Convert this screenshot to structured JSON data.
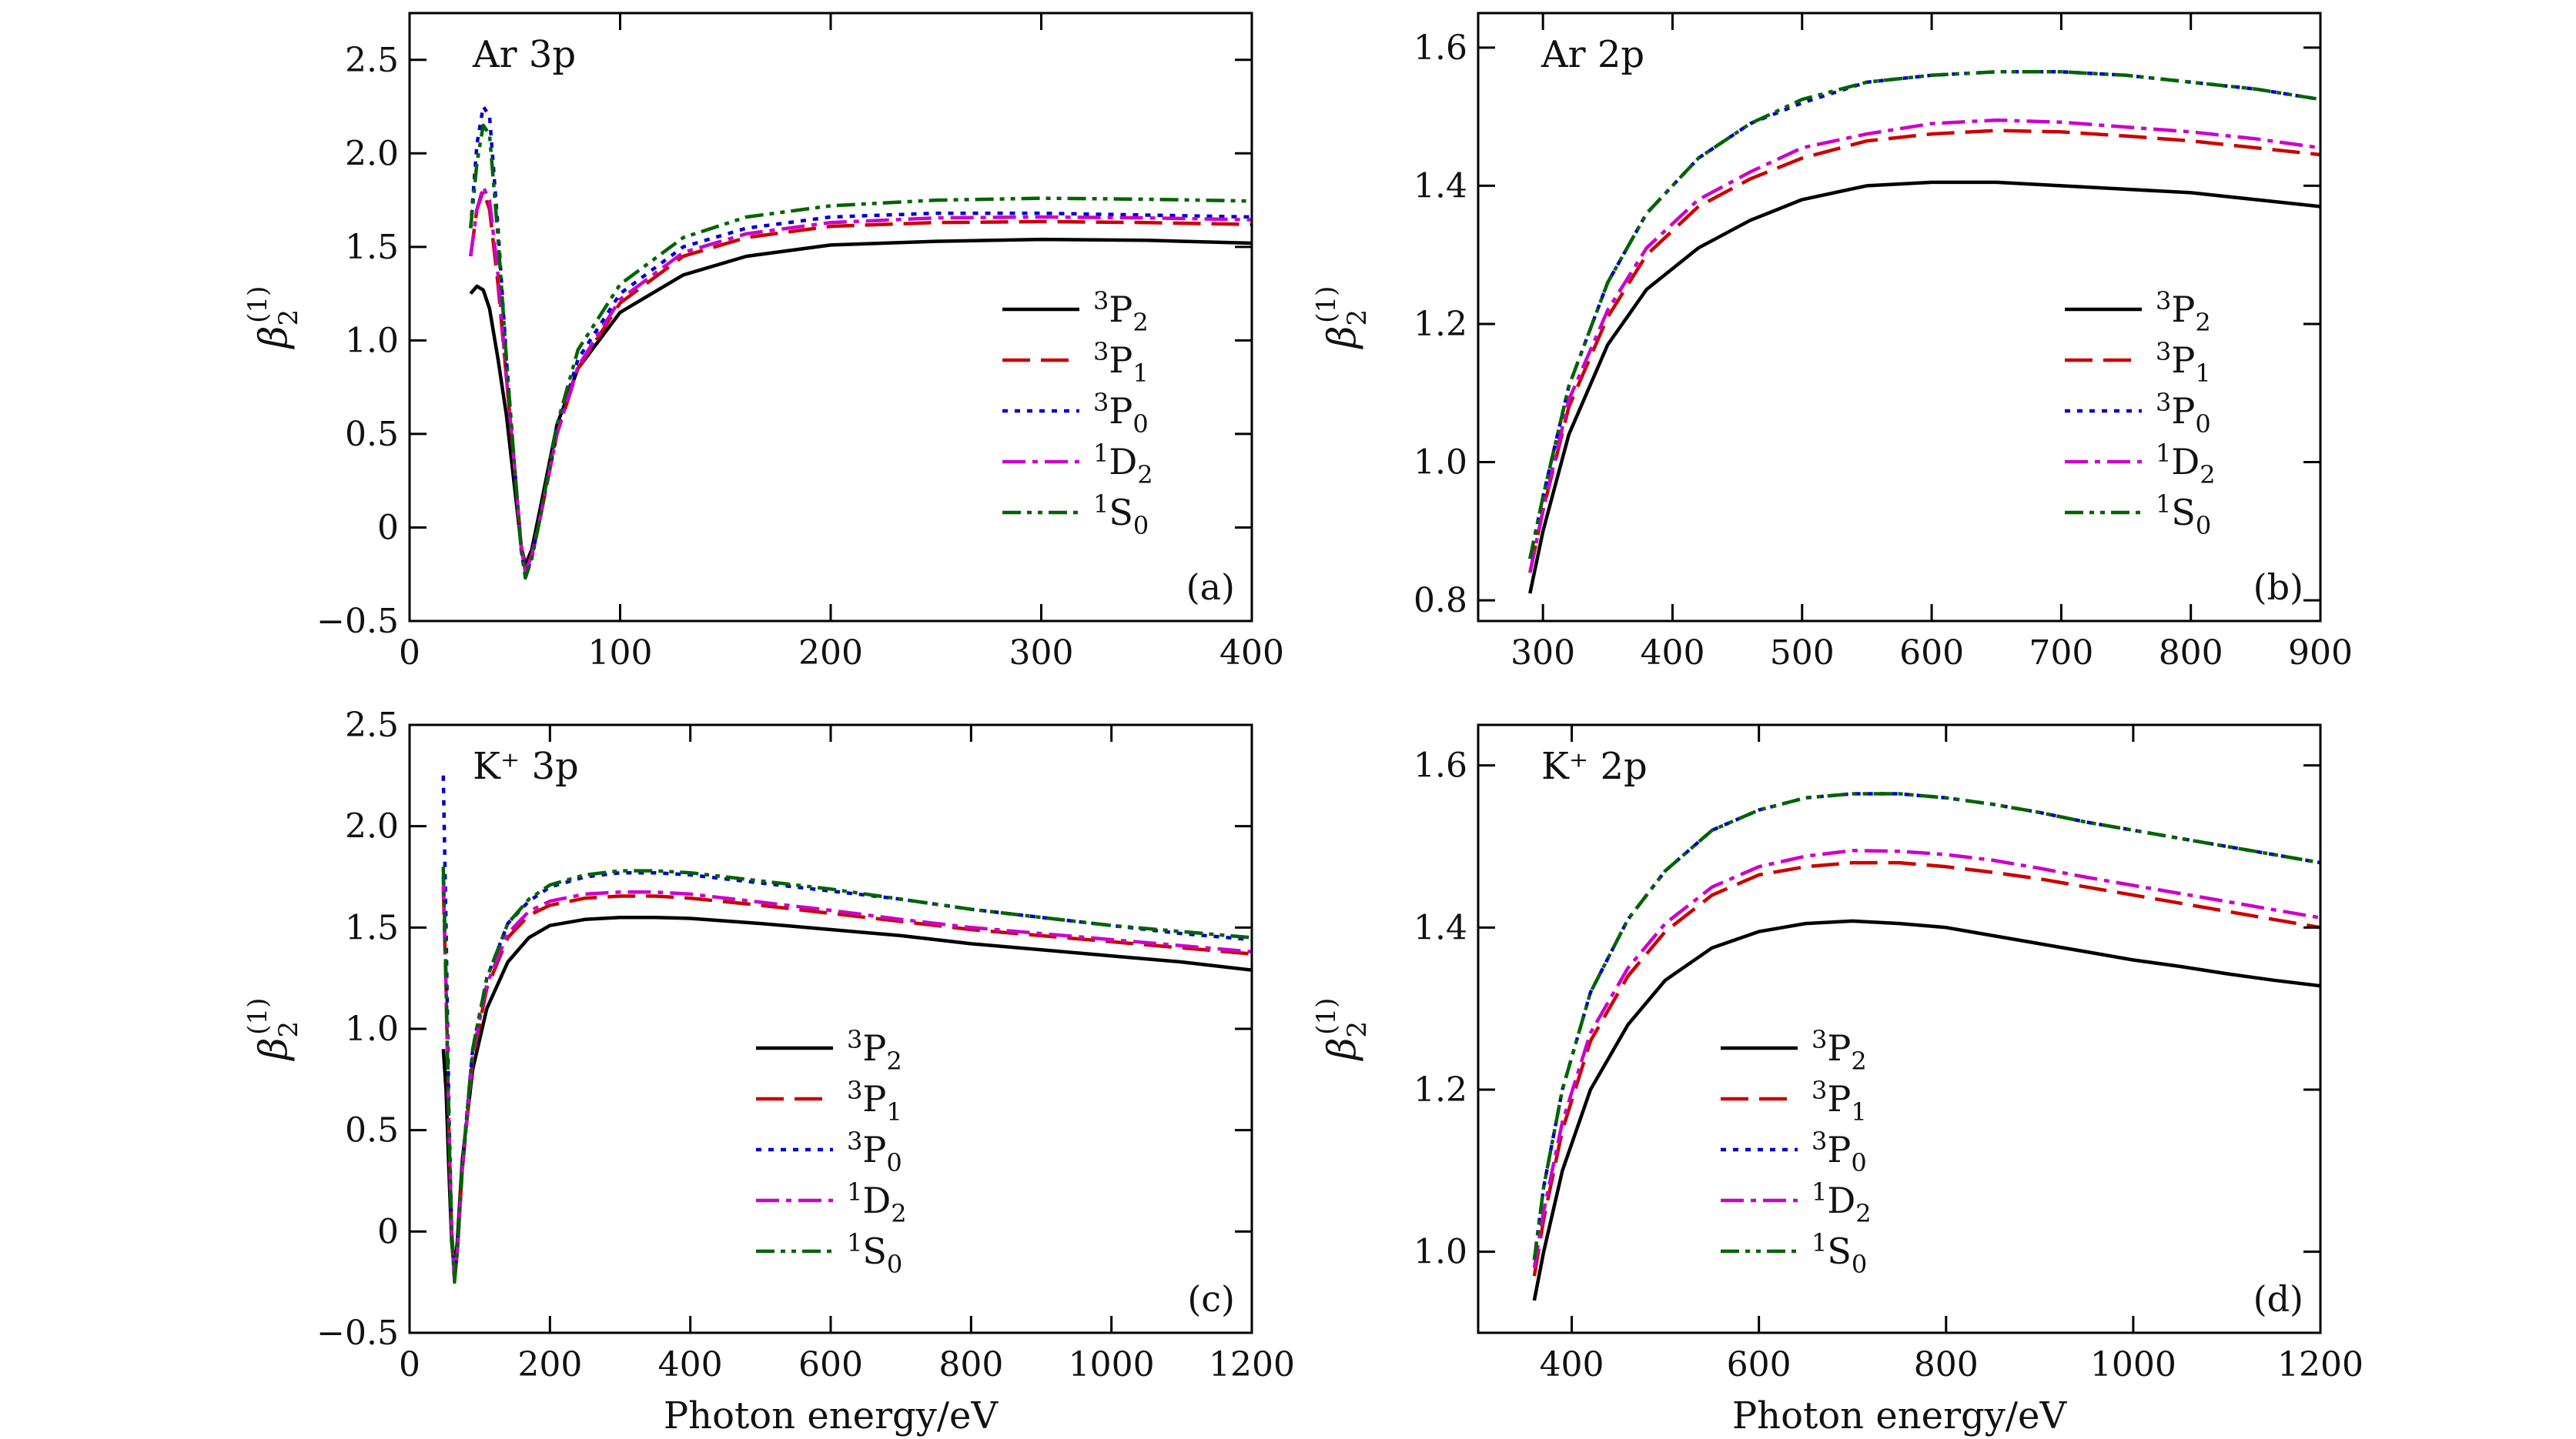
{
  "figure": {
    "xlabel": "Photon energy/eV",
    "ylabel_symbol": "β",
    "ylabel_sub": "2",
    "ylabel_sup": "(1)"
  },
  "legend": [
    {
      "key": "3P2",
      "sup": "3",
      "base": "P",
      "sub": "2",
      "color": "#000000",
      "dash": "solid"
    },
    {
      "key": "3P1",
      "sup": "3",
      "base": "P",
      "sub": "1",
      "color": "#cc0000",
      "dash": "dashed"
    },
    {
      "key": "3P0",
      "sup": "3",
      "base": "P",
      "sub": "0",
      "color": "#0000cc",
      "dash": "dotted"
    },
    {
      "key": "1D2",
      "sup": "1",
      "base": "D",
      "sub": "2",
      "color": "#cc00cc",
      "dash": "dashdot"
    },
    {
      "key": "1S0",
      "sup": "1",
      "base": "S",
      "sub": "0",
      "color": "#006400",
      "dash": "dashdotdot"
    }
  ],
  "chart_data": [
    {
      "panel": "(a)",
      "title": "Ar 3p",
      "type": "line",
      "xlim": [
        0,
        400
      ],
      "ylim": [
        -0.5,
        2.75
      ],
      "xticks": [
        "0",
        "100",
        "200",
        "300",
        "400"
      ],
      "xtick_values": [
        0,
        100,
        200,
        300,
        400
      ],
      "yticks": [
        "−0.5",
        "0",
        "0.5",
        "1.0",
        "1.5",
        "2.0",
        "2.5"
      ],
      "ytick_values": [
        -0.5,
        0,
        0.5,
        1.0,
        1.5,
        2.0,
        2.5
      ],
      "series": [
        {
          "name": "3P2",
          "x": [
            29,
            32,
            35,
            38,
            42,
            46,
            50,
            53,
            55,
            58,
            62,
            70,
            80,
            100,
            130,
            160,
            200,
            250,
            300,
            350,
            400
          ],
          "y": [
            1.25,
            1.29,
            1.27,
            1.17,
            0.9,
            0.6,
            0.2,
            -0.1,
            -0.2,
            -0.12,
            0.1,
            0.55,
            0.85,
            1.15,
            1.35,
            1.45,
            1.51,
            1.53,
            1.54,
            1.535,
            1.52
          ]
        },
        {
          "name": "3P1",
          "x": [
            29,
            32,
            35,
            38,
            42,
            46,
            50,
            53,
            55,
            58,
            62,
            70,
            80,
            100,
            130,
            160,
            200,
            250,
            300,
            350,
            400
          ],
          "y": [
            1.45,
            1.7,
            1.8,
            1.7,
            1.3,
            0.8,
            0.3,
            -0.1,
            -0.23,
            -0.15,
            0.05,
            0.5,
            0.85,
            1.2,
            1.45,
            1.55,
            1.61,
            1.63,
            1.635,
            1.63,
            1.62
          ]
        },
        {
          "name": "3P0",
          "x": [
            29,
            32,
            35,
            38,
            42,
            46,
            50,
            53,
            55,
            58,
            62,
            70,
            80,
            100,
            130,
            160,
            200,
            250,
            300,
            350,
            400
          ],
          "y": [
            1.6,
            2.05,
            2.25,
            2.2,
            1.6,
            0.9,
            0.3,
            -0.12,
            -0.26,
            -0.16,
            0.05,
            0.52,
            0.9,
            1.25,
            1.5,
            1.6,
            1.66,
            1.68,
            1.68,
            1.67,
            1.66
          ]
        },
        {
          "name": "1D2",
          "x": [
            29,
            32,
            35,
            38,
            42,
            46,
            50,
            53,
            55,
            58,
            62,
            70,
            80,
            100,
            130,
            160,
            200,
            250,
            300,
            350,
            400
          ],
          "y": [
            1.45,
            1.7,
            1.82,
            1.75,
            1.35,
            0.8,
            0.3,
            -0.1,
            -0.24,
            -0.15,
            0.05,
            0.5,
            0.86,
            1.22,
            1.47,
            1.57,
            1.63,
            1.655,
            1.66,
            1.655,
            1.645
          ]
        },
        {
          "name": "1S0",
          "x": [
            29,
            32,
            35,
            38,
            42,
            46,
            50,
            53,
            55,
            58,
            62,
            70,
            80,
            100,
            130,
            160,
            200,
            250,
            300,
            350,
            400
          ],
          "y": [
            1.6,
            1.95,
            2.15,
            2.1,
            1.55,
            0.9,
            0.3,
            -0.12,
            -0.27,
            -0.17,
            0.05,
            0.55,
            0.95,
            1.3,
            1.55,
            1.66,
            1.72,
            1.75,
            1.76,
            1.755,
            1.745
          ]
        }
      ]
    },
    {
      "panel": "(b)",
      "title": "Ar 2p",
      "type": "line",
      "xlim": [
        250,
        900
      ],
      "ylim": [
        0.77,
        1.65
      ],
      "xticks": [
        "300",
        "400",
        "500",
        "600",
        "700",
        "800",
        "900"
      ],
      "xtick_values": [
        300,
        400,
        500,
        600,
        700,
        800,
        900
      ],
      "yticks": [
        "0.8",
        "1.0",
        "1.2",
        "1.4",
        "1.6"
      ],
      "ytick_values": [
        0.8,
        1.0,
        1.2,
        1.4,
        1.6
      ],
      "series": [
        {
          "name": "3P2",
          "x": [
            290,
            300,
            320,
            350,
            380,
            420,
            460,
            500,
            550,
            600,
            650,
            700,
            750,
            800,
            850,
            900
          ],
          "y": [
            0.81,
            0.9,
            1.04,
            1.17,
            1.25,
            1.31,
            1.35,
            1.38,
            1.4,
            1.405,
            1.405,
            1.4,
            1.395,
            1.39,
            1.38,
            1.37
          ]
        },
        {
          "name": "3P1",
          "x": [
            290,
            300,
            320,
            350,
            380,
            420,
            460,
            500,
            550,
            600,
            650,
            700,
            750,
            800,
            850,
            900
          ],
          "y": [
            0.84,
            0.93,
            1.08,
            1.21,
            1.3,
            1.37,
            1.41,
            1.44,
            1.465,
            1.475,
            1.48,
            1.478,
            1.472,
            1.465,
            1.455,
            1.445
          ]
        },
        {
          "name": "3P0",
          "x": [
            290,
            300,
            320,
            350,
            380,
            420,
            460,
            500,
            550,
            600,
            650,
            700,
            750,
            800,
            850,
            900
          ],
          "y": [
            0.86,
            0.95,
            1.11,
            1.26,
            1.36,
            1.44,
            1.49,
            1.52,
            1.55,
            1.56,
            1.565,
            1.565,
            1.56,
            1.55,
            1.54,
            1.525
          ]
        },
        {
          "name": "1D2",
          "x": [
            290,
            300,
            320,
            350,
            380,
            420,
            460,
            500,
            550,
            600,
            650,
            700,
            750,
            800,
            850,
            900
          ],
          "y": [
            0.84,
            0.93,
            1.09,
            1.22,
            1.31,
            1.38,
            1.42,
            1.455,
            1.475,
            1.49,
            1.495,
            1.492,
            1.485,
            1.478,
            1.468,
            1.455
          ]
        },
        {
          "name": "1S0",
          "x": [
            290,
            300,
            320,
            350,
            380,
            420,
            460,
            500,
            550,
            600,
            650,
            700,
            750,
            800,
            850,
            900
          ],
          "y": [
            0.86,
            0.95,
            1.11,
            1.26,
            1.36,
            1.44,
            1.49,
            1.525,
            1.55,
            1.56,
            1.565,
            1.565,
            1.56,
            1.55,
            1.54,
            1.525
          ]
        }
      ]
    },
    {
      "panel": "(c)",
      "title": "K⁺ 3p",
      "type": "line",
      "xlim": [
        0,
        1200
      ],
      "ylim": [
        -0.5,
        2.5
      ],
      "xticks": [
        "0",
        "200",
        "400",
        "600",
        "800",
        "1000",
        "1200"
      ],
      "xtick_values": [
        0,
        200,
        400,
        600,
        800,
        1000,
        1200
      ],
      "yticks": [
        "−0.5",
        "0",
        "0.5",
        "1.0",
        "1.5",
        "2.0",
        "2.5"
      ],
      "ytick_values": [
        -0.5,
        0,
        0.5,
        1.0,
        1.5,
        2.0,
        2.5
      ],
      "series": [
        {
          "name": "3P2",
          "x": [
            48,
            52,
            56,
            60,
            64,
            68,
            75,
            90,
            110,
            140,
            170,
            200,
            250,
            300,
            350,
            400,
            500,
            600,
            700,
            800,
            900,
            1000,
            1100,
            1200
          ],
          "y": [
            0.9,
            0.7,
            0.3,
            -0.05,
            -0.2,
            -0.05,
            0.35,
            0.8,
            1.1,
            1.33,
            1.45,
            1.51,
            1.54,
            1.55,
            1.55,
            1.545,
            1.52,
            1.49,
            1.46,
            1.42,
            1.39,
            1.36,
            1.33,
            1.29
          ]
        },
        {
          "name": "3P1",
          "x": [
            48,
            52,
            56,
            60,
            64,
            68,
            75,
            90,
            110,
            140,
            170,
            200,
            250,
            300,
            350,
            400,
            500,
            600,
            700,
            800,
            900,
            1000,
            1100,
            1200
          ],
          "y": [
            1.7,
            1.2,
            0.5,
            0.0,
            -0.22,
            -0.1,
            0.3,
            0.85,
            1.2,
            1.45,
            1.56,
            1.61,
            1.645,
            1.655,
            1.655,
            1.645,
            1.61,
            1.57,
            1.53,
            1.49,
            1.46,
            1.43,
            1.4,
            1.37
          ]
        },
        {
          "name": "3P0",
          "x": [
            48,
            52,
            56,
            60,
            64,
            68,
            75,
            90,
            110,
            140,
            170,
            200,
            250,
            300,
            350,
            400,
            500,
            600,
            700,
            800,
            900,
            1000,
            1100,
            1200
          ],
          "y": [
            2.25,
            1.5,
            0.6,
            0.0,
            -0.23,
            -0.1,
            0.32,
            0.9,
            1.25,
            1.52,
            1.63,
            1.7,
            1.75,
            1.77,
            1.77,
            1.76,
            1.72,
            1.68,
            1.64,
            1.59,
            1.55,
            1.51,
            1.47,
            1.44
          ]
        },
        {
          "name": "1D2",
          "x": [
            48,
            52,
            56,
            60,
            64,
            68,
            75,
            90,
            110,
            140,
            170,
            200,
            250,
            300,
            350,
            400,
            500,
            600,
            700,
            800,
            900,
            1000,
            1100,
            1200
          ],
          "y": [
            1.75,
            1.2,
            0.5,
            0.0,
            -0.24,
            -0.1,
            0.3,
            0.87,
            1.22,
            1.47,
            1.58,
            1.63,
            1.665,
            1.675,
            1.675,
            1.665,
            1.625,
            1.585,
            1.54,
            1.5,
            1.47,
            1.44,
            1.41,
            1.38
          ]
        },
        {
          "name": "1S0",
          "x": [
            48,
            52,
            56,
            60,
            64,
            68,
            75,
            90,
            110,
            140,
            170,
            200,
            250,
            300,
            350,
            400,
            500,
            600,
            700,
            800,
            900,
            1000,
            1100,
            1200
          ],
          "y": [
            1.8,
            1.25,
            0.5,
            0.0,
            -0.25,
            -0.1,
            0.32,
            0.9,
            1.25,
            1.52,
            1.64,
            1.71,
            1.76,
            1.78,
            1.78,
            1.77,
            1.73,
            1.69,
            1.64,
            1.59,
            1.55,
            1.51,
            1.48,
            1.45
          ]
        }
      ]
    },
    {
      "panel": "(d)",
      "title": "K⁺ 2p",
      "type": "line",
      "xlim": [
        300,
        1200
      ],
      "ylim": [
        0.9,
        1.65
      ],
      "xticks": [
        "400",
        "600",
        "800",
        "1000",
        "1200"
      ],
      "xtick_values": [
        400,
        600,
        800,
        1000,
        1200
      ],
      "yticks": [
        "1.0",
        "1.2",
        "1.4",
        "1.6"
      ],
      "ytick_values": [
        1.0,
        1.2,
        1.4,
        1.6
      ],
      "series": [
        {
          "name": "3P2",
          "x": [
            360,
            370,
            390,
            420,
            460,
            500,
            550,
            600,
            650,
            700,
            750,
            800,
            850,
            900,
            950,
            1000,
            1050,
            1100,
            1150,
            1200
          ],
          "y": [
            0.94,
            1.0,
            1.1,
            1.2,
            1.28,
            1.335,
            1.375,
            1.395,
            1.405,
            1.408,
            1.405,
            1.4,
            1.39,
            1.38,
            1.37,
            1.36,
            1.352,
            1.343,
            1.335,
            1.328
          ]
        },
        {
          "name": "3P1",
          "x": [
            360,
            370,
            390,
            420,
            460,
            500,
            550,
            600,
            650,
            700,
            750,
            800,
            850,
            900,
            950,
            1000,
            1050,
            1100,
            1150,
            1200
          ],
          "y": [
            0.97,
            1.04,
            1.15,
            1.26,
            1.34,
            1.395,
            1.44,
            1.465,
            1.475,
            1.48,
            1.48,
            1.475,
            1.468,
            1.46,
            1.45,
            1.44,
            1.43,
            1.42,
            1.41,
            1.4
          ]
        },
        {
          "name": "3P0",
          "x": [
            360,
            370,
            390,
            420,
            460,
            500,
            550,
            600,
            650,
            700,
            750,
            800,
            850,
            900,
            950,
            1000,
            1050,
            1100,
            1150,
            1200
          ],
          "y": [
            0.99,
            1.08,
            1.2,
            1.32,
            1.41,
            1.47,
            1.52,
            1.545,
            1.56,
            1.565,
            1.565,
            1.56,
            1.552,
            1.542,
            1.53,
            1.52,
            1.51,
            1.5,
            1.49,
            1.48
          ]
        },
        {
          "name": "1D2",
          "x": [
            360,
            370,
            390,
            420,
            460,
            500,
            550,
            600,
            650,
            700,
            750,
            800,
            850,
            900,
            950,
            1000,
            1050,
            1100,
            1150,
            1200
          ],
          "y": [
            0.98,
            1.05,
            1.16,
            1.27,
            1.35,
            1.405,
            1.45,
            1.475,
            1.488,
            1.495,
            1.494,
            1.49,
            1.483,
            1.473,
            1.462,
            1.452,
            1.442,
            1.432,
            1.422,
            1.412
          ]
        },
        {
          "name": "1S0",
          "x": [
            360,
            370,
            390,
            420,
            460,
            500,
            550,
            600,
            650,
            700,
            750,
            800,
            850,
            900,
            950,
            1000,
            1050,
            1100,
            1150,
            1200
          ],
          "y": [
            0.99,
            1.08,
            1.2,
            1.32,
            1.41,
            1.47,
            1.52,
            1.545,
            1.56,
            1.565,
            1.565,
            1.56,
            1.552,
            1.542,
            1.53,
            1.52,
            1.51,
            1.5,
            1.49,
            1.48
          ]
        }
      ]
    }
  ]
}
